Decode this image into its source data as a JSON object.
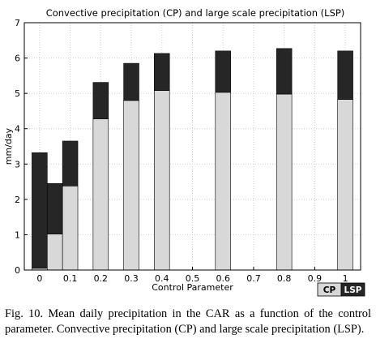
{
  "chart_data": {
    "type": "bar",
    "stacked": true,
    "title": "Convective precipitation (CP) and large scale precipitation (LSP)",
    "xlabel": "Control Parameter",
    "ylabel": "mm/day",
    "xlim": [
      -0.05,
      1.05
    ],
    "ylim": [
      0,
      7
    ],
    "x_ticks": [
      "0",
      "0.1",
      "0.2",
      "0.3",
      "0.4",
      "0.5",
      "0.6",
      "0.7",
      "0.8",
      "0.9",
      "1"
    ],
    "y_ticks": [
      "0",
      "1",
      "2",
      "3",
      "4",
      "5",
      "6",
      "7"
    ],
    "x": [
      0.0,
      0.05,
      0.1,
      0.2,
      0.3,
      0.4,
      0.6,
      0.8,
      1.0
    ],
    "series": [
      {
        "name": "CP",
        "color": "#d8d8d8",
        "values": [
          0.05,
          1.02,
          2.38,
          4.28,
          4.8,
          5.08,
          5.03,
          4.98,
          4.83
        ]
      },
      {
        "name": "LSP",
        "color": "#262626",
        "values": [
          3.27,
          1.43,
          1.27,
          1.03,
          1.05,
          1.05,
          1.17,
          1.29,
          1.37
        ]
      }
    ],
    "grid": true,
    "legend_position": "bottom-right"
  },
  "caption": "Fig. 10. Mean daily precipitation in the CAR as a function of the control parameter. Convective precipitation (CP) and large scale precipitation (LSP)."
}
